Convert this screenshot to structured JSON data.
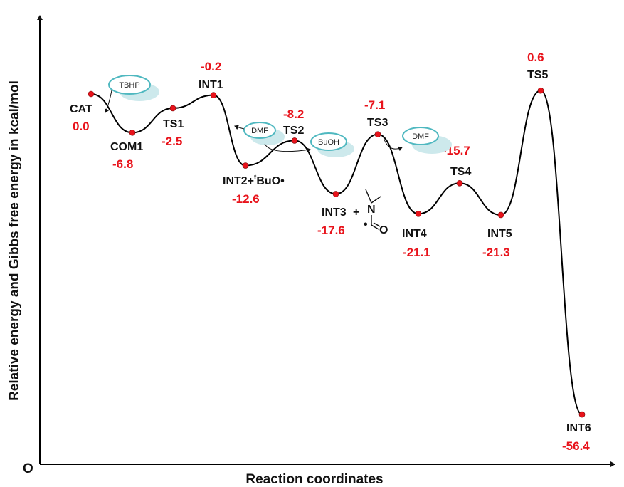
{
  "chart_data": {
    "type": "line",
    "xlabel": "Reaction coordinates",
    "ylabel": "Relative energy and Gibbs free energy in kcal/mol",
    "origin_label": "O",
    "species": [
      {
        "name": "CAT",
        "energy": 0.0,
        "value_text": "0.0"
      },
      {
        "name": "COM1",
        "energy": -6.8,
        "value_text": "-6.8"
      },
      {
        "name": "TS1",
        "energy": -2.5,
        "value_text": "-2.5"
      },
      {
        "name": "INT1",
        "energy": -0.2,
        "value_text": "-0.2"
      },
      {
        "name": "INT2+",
        "energy": -12.6,
        "value_text": "-12.6"
      },
      {
        "name": "TS2",
        "energy": -8.2,
        "value_text": "-8.2"
      },
      {
        "name": "INT3",
        "energy": -17.6,
        "value_text": "-17.6"
      },
      {
        "name": "TS3",
        "energy": -7.1,
        "value_text": "-7.1"
      },
      {
        "name": "INT4",
        "energy": -21.1,
        "value_text": "-21.1"
      },
      {
        "name": "TS4",
        "energy": -15.7,
        "value_text": "-15.7"
      },
      {
        "name": "INT5",
        "energy": -21.3,
        "value_text": "-21.3"
      },
      {
        "name": "TS5",
        "energy": 0.6,
        "value_text": "0.6"
      },
      {
        "name": "INT6",
        "energy": -56.4,
        "value_text": "-56.4"
      }
    ],
    "int2_suffix": {
      "sup": "t",
      "rest": "BuO•"
    },
    "int3_addend": "+",
    "molecule": {
      "n": "N",
      "o": "O",
      "radical": "•"
    },
    "reagents": [
      {
        "name": "TBHP",
        "direction": "in"
      },
      {
        "name": "DMF",
        "direction": "in"
      },
      {
        "name": "BuOH",
        "direction": "out"
      },
      {
        "name": "DMF",
        "direction": "out"
      }
    ],
    "colors": {
      "value": "#e8131b",
      "point": "#e8131b",
      "curve": "#000000",
      "oval_stroke": "#4fb8c0",
      "oval_shadow": "#cde9ec"
    }
  }
}
